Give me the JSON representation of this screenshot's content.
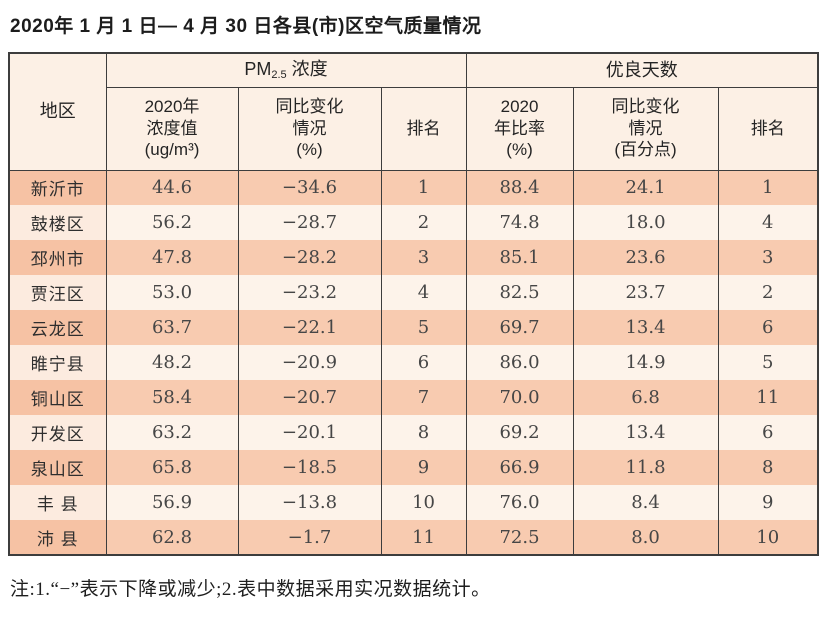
{
  "title": "2020年 1 月 1 日— 4 月 30 日各县(市)区空气质量情况",
  "colors": {
    "row_odd": "#f8cbb0",
    "row_even": "#fdf3ea",
    "region_odd": "#f6c2a4",
    "region_even": "#fcebdf",
    "header_bg": "#fcf0e5",
    "border": "#3d3d3d"
  },
  "table": {
    "header": {
      "region": "地区",
      "pm25_prefix": "PM",
      "pm25_sub": "2.5",
      "pm25_suffix": " 浓度",
      "good_days_group": "优良天数",
      "concentration": "2020年\n浓度值\n(ug/m³)",
      "pm25_change": "同比变化\n情况\n(%)",
      "pm25_rank": "排名",
      "good_ratio": "2020\n年比率\n(%)",
      "good_change": "同比变化\n情况\n(百分点)",
      "good_rank": "排名"
    },
    "rows": [
      {
        "region": "新沂市",
        "pm25_value": "44.6",
        "pm25_change": "−34.6",
        "pm25_rank": "1",
        "good_ratio": "88.4",
        "good_change": "24.1",
        "good_rank": "1"
      },
      {
        "region": "鼓楼区",
        "pm25_value": "56.2",
        "pm25_change": "−28.7",
        "pm25_rank": "2",
        "good_ratio": "74.8",
        "good_change": "18.0",
        "good_rank": "4"
      },
      {
        "region": "邳州市",
        "pm25_value": "47.8",
        "pm25_change": "−28.2",
        "pm25_rank": "3",
        "good_ratio": "85.1",
        "good_change": "23.6",
        "good_rank": "3"
      },
      {
        "region": "贾汪区",
        "pm25_value": "53.0",
        "pm25_change": "−23.2",
        "pm25_rank": "4",
        "good_ratio": "82.5",
        "good_change": "23.7",
        "good_rank": "2"
      },
      {
        "region": "云龙区",
        "pm25_value": "63.7",
        "pm25_change": "−22.1",
        "pm25_rank": "5",
        "good_ratio": "69.7",
        "good_change": "13.4",
        "good_rank": "6"
      },
      {
        "region": "睢宁县",
        "pm25_value": "48.2",
        "pm25_change": "−20.9",
        "pm25_rank": "6",
        "good_ratio": "86.0",
        "good_change": "14.9",
        "good_rank": "5"
      },
      {
        "region": "铜山区",
        "pm25_value": "58.4",
        "pm25_change": "−20.7",
        "pm25_rank": "7",
        "good_ratio": "70.0",
        "good_change": "6.8",
        "good_rank": "11"
      },
      {
        "region": "开发区",
        "pm25_value": "63.2",
        "pm25_change": "−20.1",
        "pm25_rank": "8",
        "good_ratio": "69.2",
        "good_change": "13.4",
        "good_rank": "6"
      },
      {
        "region": "泉山区",
        "pm25_value": "65.8",
        "pm25_change": "−18.5",
        "pm25_rank": "9",
        "good_ratio": "66.9",
        "good_change": "11.8",
        "good_rank": "8"
      },
      {
        "region": "丰 县",
        "pm25_value": "56.9",
        "pm25_change": "−13.8",
        "pm25_rank": "10",
        "good_ratio": "76.0",
        "good_change": "8.4",
        "good_rank": "9"
      },
      {
        "region": "沛 县",
        "pm25_value": "62.8",
        "pm25_change": "−1.7",
        "pm25_rank": "11",
        "good_ratio": "72.5",
        "good_change": "8.0",
        "good_rank": "10"
      }
    ]
  },
  "note": "注:1.“−”表示下降或减少;2.表中数据采用实况数据统计。"
}
